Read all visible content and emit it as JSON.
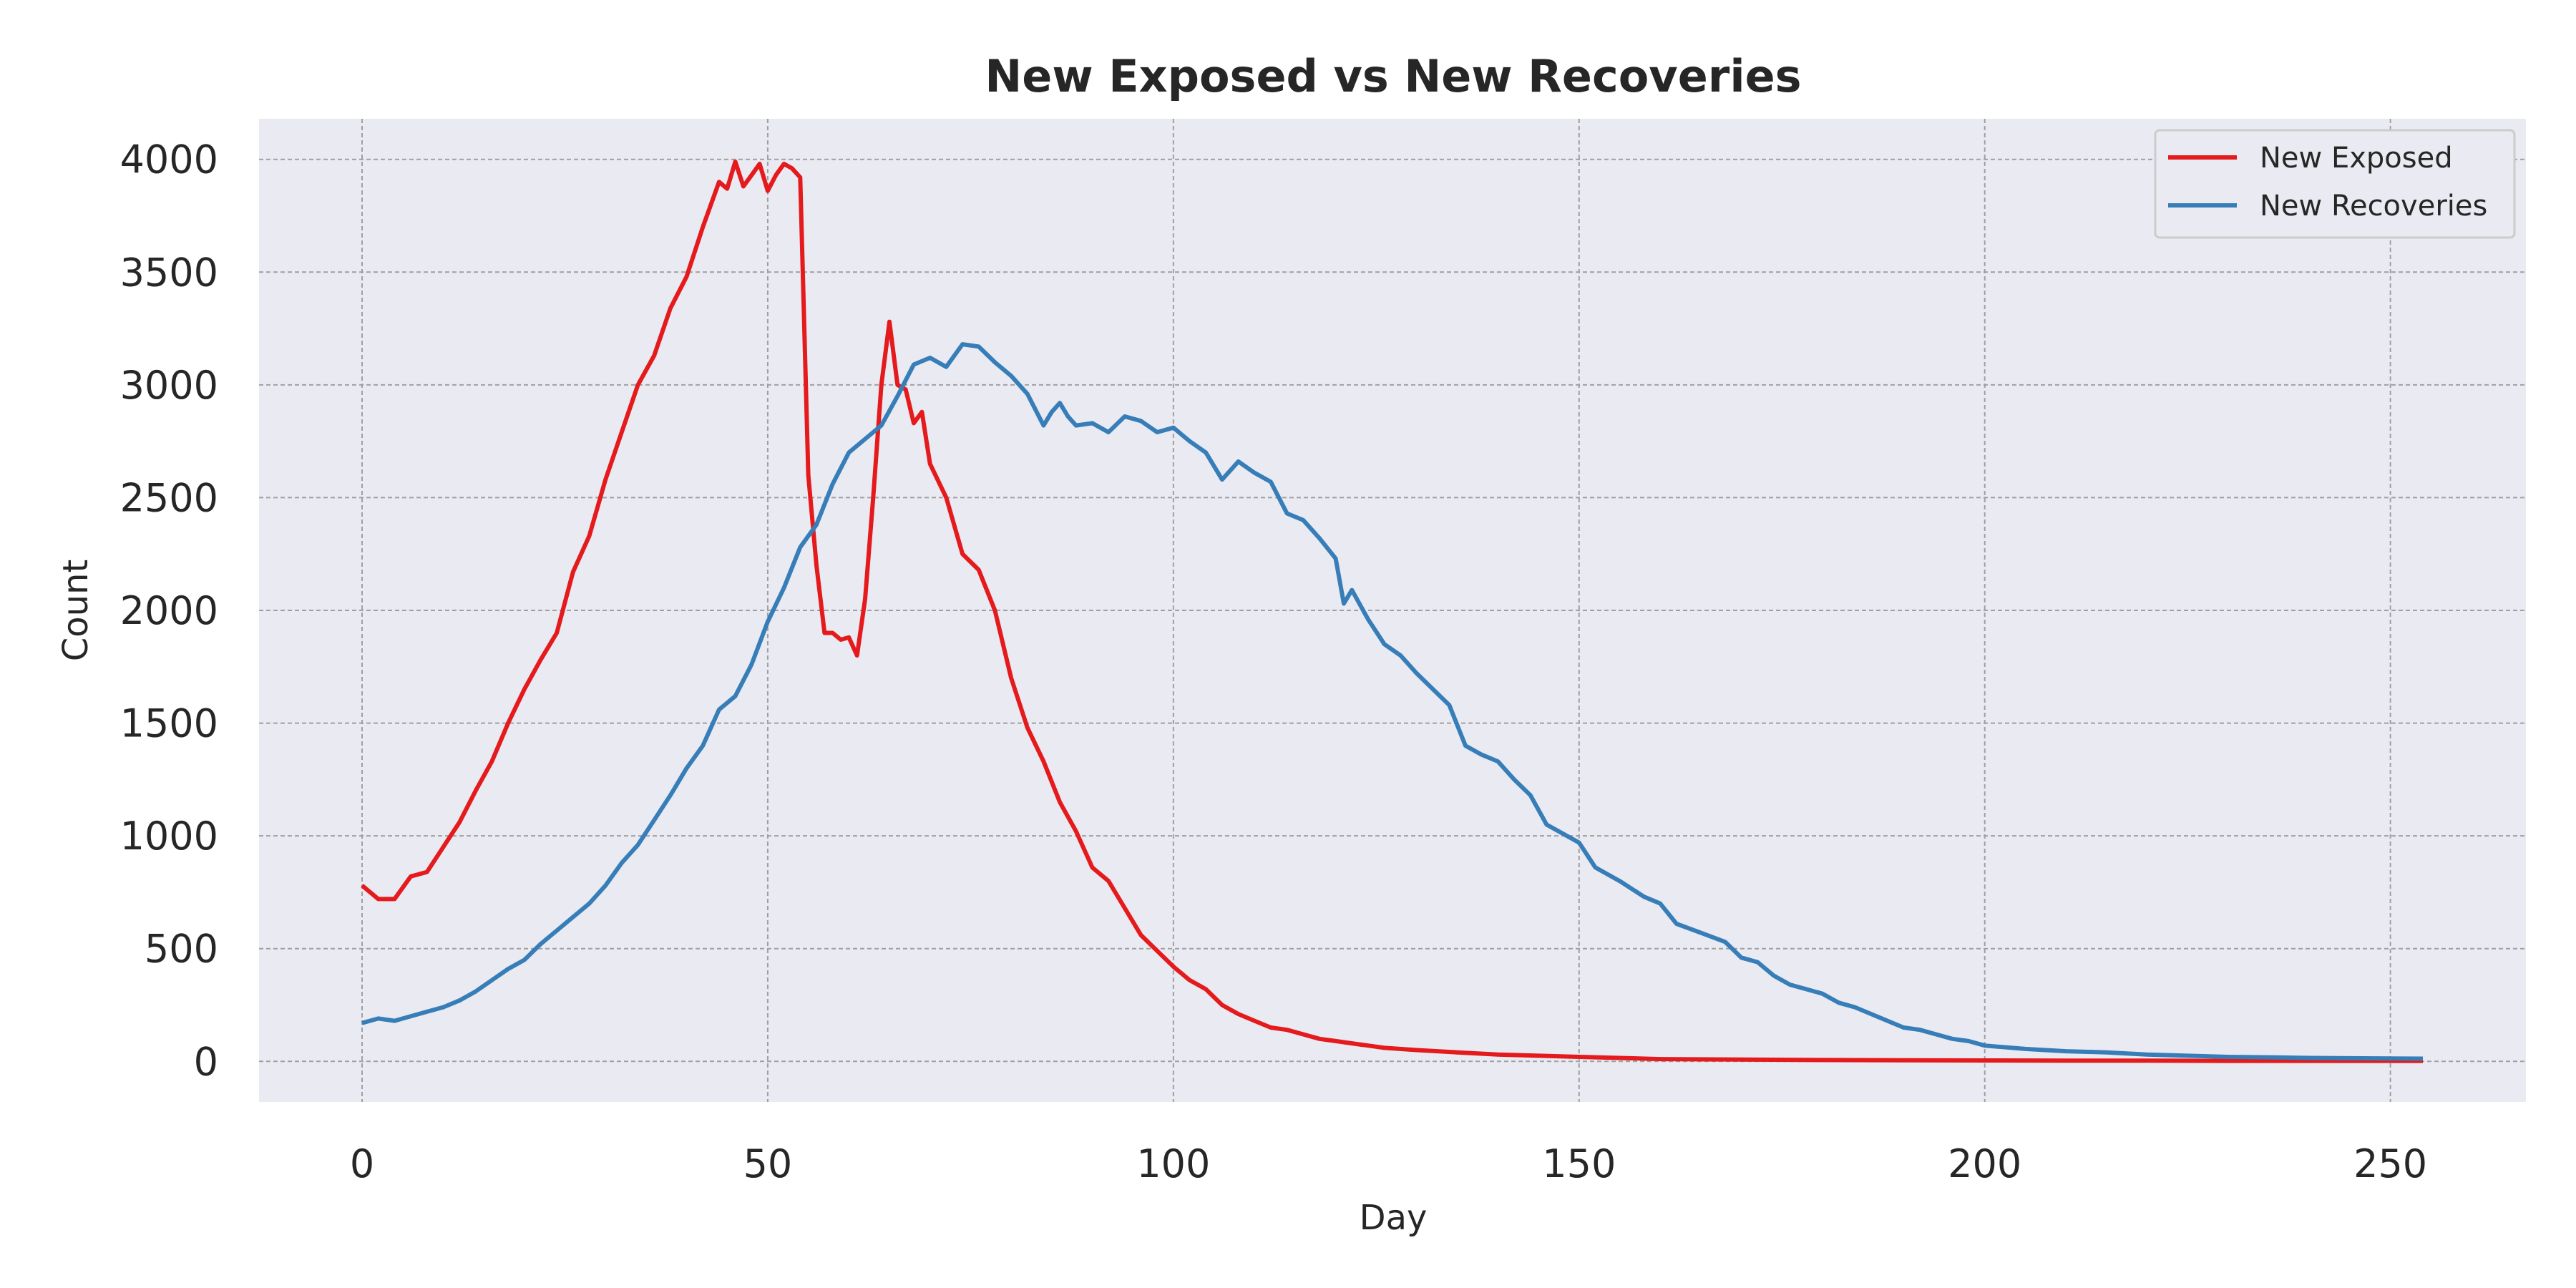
{
  "chart_data": {
    "type": "line",
    "title": "New Exposed vs New Recoveries",
    "xlabel": "Day",
    "ylabel": "Count",
    "xlim": [
      -12.7,
      266.7
    ],
    "ylim": [
      -180,
      4180
    ],
    "xticks": [
      0,
      50,
      100,
      150,
      200,
      250
    ],
    "yticks": [
      0,
      500,
      1000,
      1500,
      2000,
      2500,
      3000,
      3500,
      4000
    ],
    "grid": true,
    "legend_position": "top-right",
    "series": [
      {
        "name": "New Exposed",
        "color": "#e41a1c",
        "points": [
          [
            0,
            780
          ],
          [
            2,
            720
          ],
          [
            4,
            720
          ],
          [
            6,
            820
          ],
          [
            8,
            840
          ],
          [
            10,
            950
          ],
          [
            12,
            1060
          ],
          [
            14,
            1200
          ],
          [
            16,
            1330
          ],
          [
            18,
            1500
          ],
          [
            20,
            1650
          ],
          [
            22,
            1780
          ],
          [
            24,
            1900
          ],
          [
            26,
            2170
          ],
          [
            28,
            2330
          ],
          [
            30,
            2580
          ],
          [
            32,
            2790
          ],
          [
            34,
            3000
          ],
          [
            36,
            3130
          ],
          [
            38,
            3340
          ],
          [
            40,
            3480
          ],
          [
            42,
            3700
          ],
          [
            44,
            3900
          ],
          [
            45,
            3870
          ],
          [
            46,
            3990
          ],
          [
            47,
            3880
          ],
          [
            48,
            3930
          ],
          [
            49,
            3980
          ],
          [
            50,
            3860
          ],
          [
            51,
            3930
          ],
          [
            52,
            3980
          ],
          [
            53,
            3960
          ],
          [
            54,
            3920
          ],
          [
            55,
            2600
          ],
          [
            56,
            2200
          ],
          [
            57,
            1900
          ],
          [
            58,
            1900
          ],
          [
            59,
            1870
          ],
          [
            60,
            1880
          ],
          [
            61,
            1800
          ],
          [
            62,
            2050
          ],
          [
            63,
            2500
          ],
          [
            64,
            3000
          ],
          [
            65,
            3280
          ],
          [
            66,
            3000
          ],
          [
            67,
            2980
          ],
          [
            68,
            2830
          ],
          [
            69,
            2880
          ],
          [
            70,
            2650
          ],
          [
            72,
            2500
          ],
          [
            74,
            2250
          ],
          [
            76,
            2180
          ],
          [
            78,
            2000
          ],
          [
            80,
            1700
          ],
          [
            82,
            1480
          ],
          [
            84,
            1330
          ],
          [
            86,
            1150
          ],
          [
            88,
            1020
          ],
          [
            90,
            860
          ],
          [
            92,
            800
          ],
          [
            94,
            680
          ],
          [
            96,
            560
          ],
          [
            98,
            490
          ],
          [
            100,
            420
          ],
          [
            102,
            360
          ],
          [
            104,
            320
          ],
          [
            106,
            250
          ],
          [
            108,
            210
          ],
          [
            110,
            180
          ],
          [
            112,
            150
          ],
          [
            114,
            140
          ],
          [
            116,
            120
          ],
          [
            118,
            100
          ],
          [
            120,
            90
          ],
          [
            122,
            80
          ],
          [
            126,
            60
          ],
          [
            130,
            50
          ],
          [
            135,
            40
          ],
          [
            140,
            30
          ],
          [
            145,
            25
          ],
          [
            150,
            20
          ],
          [
            155,
            15
          ],
          [
            160,
            10
          ],
          [
            170,
            8
          ],
          [
            180,
            6
          ],
          [
            190,
            5
          ],
          [
            200,
            4
          ],
          [
            210,
            3
          ],
          [
            220,
            3
          ],
          [
            230,
            2
          ],
          [
            240,
            2
          ],
          [
            254,
            2
          ]
        ]
      },
      {
        "name": "New Recoveries",
        "color": "#377eb8",
        "points": [
          [
            0,
            170
          ],
          [
            2,
            190
          ],
          [
            4,
            180
          ],
          [
            6,
            200
          ],
          [
            8,
            220
          ],
          [
            10,
            240
          ],
          [
            12,
            270
          ],
          [
            14,
            310
          ],
          [
            16,
            360
          ],
          [
            18,
            410
          ],
          [
            20,
            450
          ],
          [
            22,
            520
          ],
          [
            24,
            580
          ],
          [
            26,
            640
          ],
          [
            28,
            700
          ],
          [
            30,
            780
          ],
          [
            32,
            880
          ],
          [
            34,
            960
          ],
          [
            36,
            1070
          ],
          [
            38,
            1180
          ],
          [
            40,
            1300
          ],
          [
            42,
            1400
          ],
          [
            44,
            1560
          ],
          [
            46,
            1620
          ],
          [
            48,
            1760
          ],
          [
            50,
            1950
          ],
          [
            52,
            2100
          ],
          [
            54,
            2280
          ],
          [
            56,
            2380
          ],
          [
            58,
            2560
          ],
          [
            60,
            2700
          ],
          [
            62,
            2760
          ],
          [
            64,
            2820
          ],
          [
            66,
            2950
          ],
          [
            68,
            3090
          ],
          [
            70,
            3120
          ],
          [
            72,
            3080
          ],
          [
            74,
            3180
          ],
          [
            76,
            3170
          ],
          [
            78,
            3100
          ],
          [
            80,
            3040
          ],
          [
            82,
            2960
          ],
          [
            84,
            2820
          ],
          [
            85,
            2880
          ],
          [
            86,
            2920
          ],
          [
            87,
            2860
          ],
          [
            88,
            2820
          ],
          [
            90,
            2830
          ],
          [
            92,
            2790
          ],
          [
            94,
            2860
          ],
          [
            96,
            2840
          ],
          [
            98,
            2790
          ],
          [
            100,
            2810
          ],
          [
            102,
            2750
          ],
          [
            104,
            2700
          ],
          [
            106,
            2580
          ],
          [
            108,
            2660
          ],
          [
            110,
            2610
          ],
          [
            112,
            2570
          ],
          [
            114,
            2430
          ],
          [
            116,
            2400
          ],
          [
            118,
            2320
          ],
          [
            120,
            2230
          ],
          [
            121,
            2030
          ],
          [
            122,
            2090
          ],
          [
            124,
            1960
          ],
          [
            126,
            1850
          ],
          [
            128,
            1800
          ],
          [
            130,
            1720
          ],
          [
            132,
            1650
          ],
          [
            134,
            1580
          ],
          [
            136,
            1400
          ],
          [
            138,
            1360
          ],
          [
            140,
            1330
          ],
          [
            142,
            1250
          ],
          [
            144,
            1180
          ],
          [
            146,
            1050
          ],
          [
            148,
            1010
          ],
          [
            150,
            970
          ],
          [
            152,
            860
          ],
          [
            155,
            800
          ],
          [
            158,
            730
          ],
          [
            160,
            700
          ],
          [
            162,
            610
          ],
          [
            165,
            570
          ],
          [
            168,
            530
          ],
          [
            170,
            460
          ],
          [
            172,
            440
          ],
          [
            174,
            380
          ],
          [
            176,
            340
          ],
          [
            178,
            320
          ],
          [
            180,
            300
          ],
          [
            182,
            260
          ],
          [
            184,
            240
          ],
          [
            186,
            210
          ],
          [
            188,
            180
          ],
          [
            190,
            150
          ],
          [
            192,
            140
          ],
          [
            194,
            120
          ],
          [
            196,
            100
          ],
          [
            198,
            90
          ],
          [
            200,
            70
          ],
          [
            205,
            55
          ],
          [
            210,
            45
          ],
          [
            215,
            40
          ],
          [
            220,
            30
          ],
          [
            225,
            25
          ],
          [
            230,
            20
          ],
          [
            235,
            18
          ],
          [
            240,
            15
          ],
          [
            245,
            14
          ],
          [
            250,
            13
          ],
          [
            254,
            12
          ]
        ]
      }
    ]
  }
}
